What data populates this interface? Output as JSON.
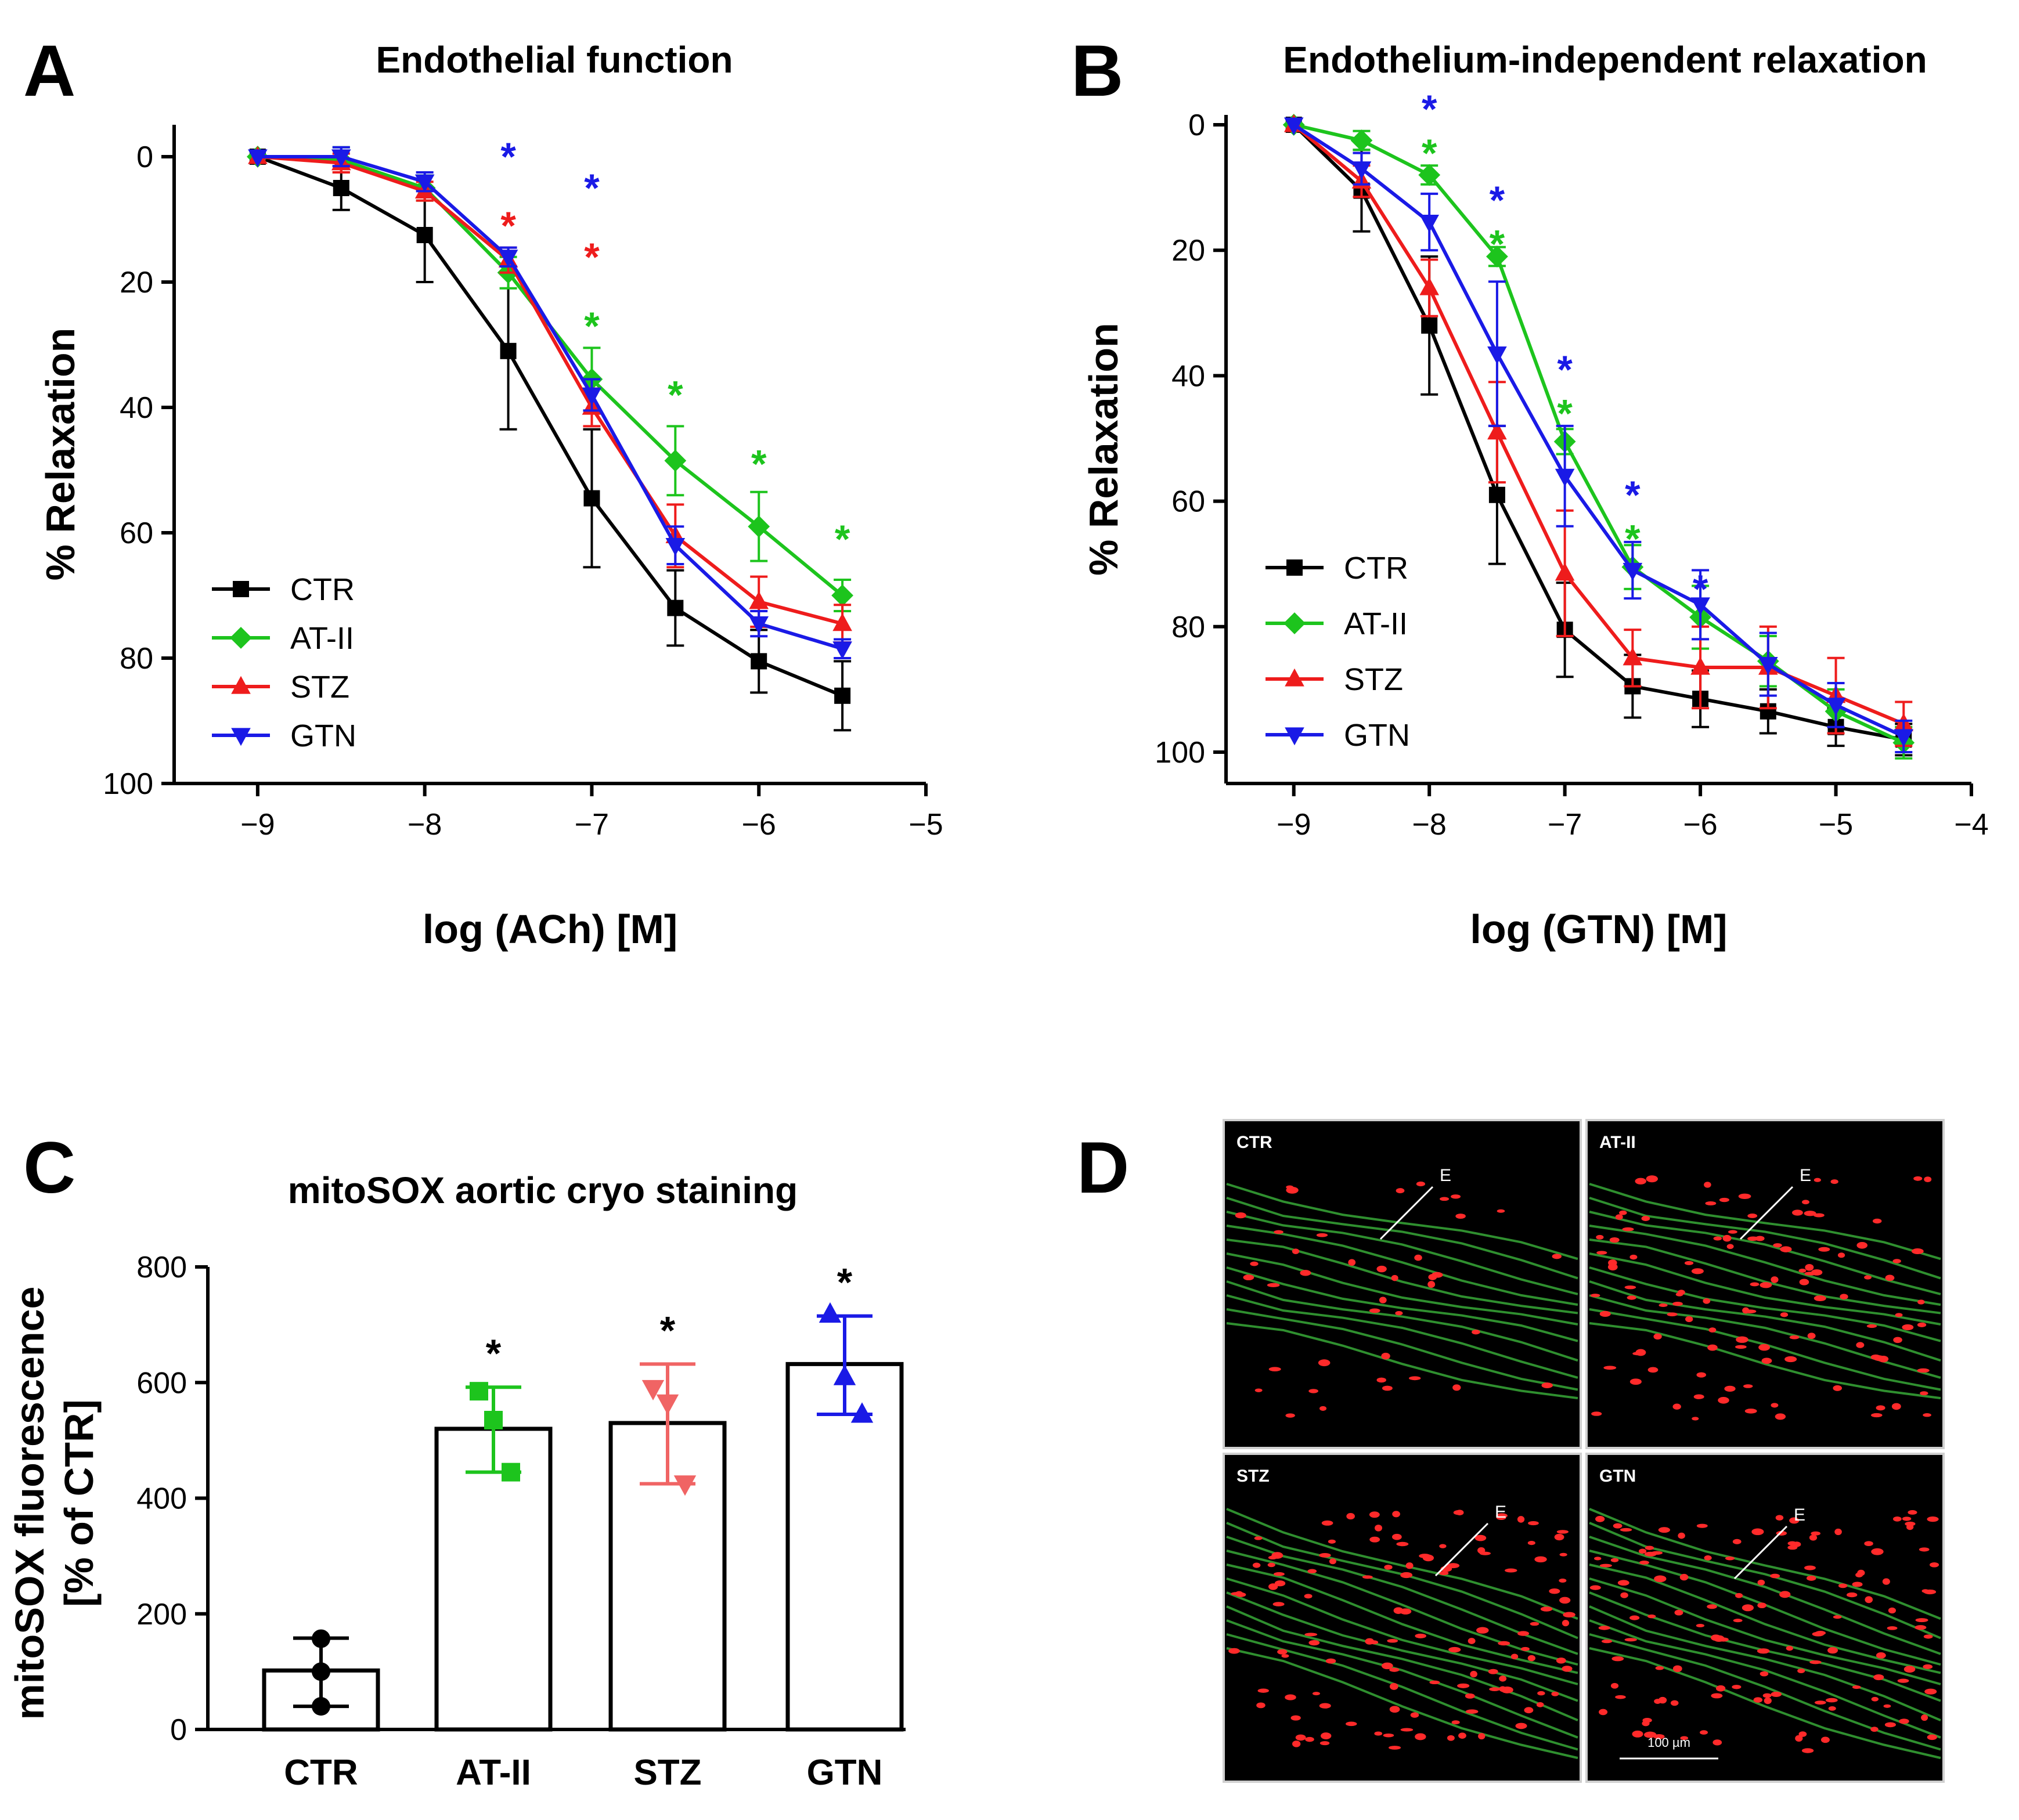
{
  "colors": {
    "CTR": "#000000",
    "AT-II": "#1dc41d",
    "STZ": "#ee1c1c",
    "GTN": "#1a1ae6",
    "STZ_light": "#f06464",
    "bg_micro": "#000000",
    "fiber": "#2f8f2f",
    "spot": "#ff2a2a"
  },
  "chart_data": [
    {
      "panel": "A",
      "type": "line",
      "title": "Endothelial function",
      "xlabel": "log (ACh) [M]",
      "ylabel": "% Relaxation",
      "xlim": [
        -9.5,
        -5
      ],
      "ylim": [
        0,
        100
      ],
      "y_inverted": true,
      "xticks": [
        -9,
        -8,
        -7,
        -6,
        -5
      ],
      "xtick_labels": [
        "−9",
        "−8",
        "−7",
        "−6",
        "−5"
      ],
      "yticks": [
        0,
        20,
        40,
        60,
        80,
        100
      ],
      "ytick_labels": [
        "0",
        "20",
        "40",
        "60",
        "80",
        "100"
      ],
      "x": [
        -9,
        -8.5,
        -8,
        -7.5,
        -7,
        -6.5,
        -6,
        -5.5
      ],
      "legend_position": "bottom-left",
      "series": [
        {
          "name": "CTR",
          "marker": "square",
          "values": [
            0,
            5,
            12.5,
            31,
            54.5,
            72,
            80.5,
            86
          ],
          "err": [
            0,
            3.5,
            7.5,
            12.5,
            11,
            6,
            5,
            5.5
          ]
        },
        {
          "name": "AT-II",
          "marker": "diamond",
          "values": [
            0,
            0.5,
            5,
            18.5,
            35.5,
            48.5,
            59,
            70
          ],
          "err": [
            0,
            2,
            2,
            2.5,
            5,
            5.5,
            5.5,
            2.5
          ]
        },
        {
          "name": "STZ",
          "marker": "triangle-up",
          "values": [
            0,
            1,
            5.5,
            16.5,
            40,
            60.5,
            71,
            74.5
          ],
          "err": [
            0,
            1.5,
            1.5,
            2,
            3,
            5,
            4,
            3
          ]
        },
        {
          "name": "GTN",
          "marker": "triangle-down",
          "values": [
            0,
            0,
            4,
            16,
            38,
            62,
            74.5,
            78.5
          ],
          "err": [
            0,
            1.5,
            1.5,
            1.5,
            2.5,
            3,
            2,
            1.5
          ]
        }
      ],
      "annotations": [
        {
          "x": -7.5,
          "y": -1,
          "text": "*",
          "series": "GTN"
        },
        {
          "x": -7.5,
          "y": 10,
          "text": "*",
          "series": "STZ"
        },
        {
          "x": -7,
          "y": 4,
          "text": "*",
          "series": "GTN"
        },
        {
          "x": -7,
          "y": 15,
          "text": "*",
          "series": "STZ"
        },
        {
          "x": -7,
          "y": 26,
          "text": "*",
          "series": "AT-II"
        },
        {
          "x": -6.5,
          "y": 37,
          "text": "*",
          "series": "AT-II"
        },
        {
          "x": -6,
          "y": 48,
          "text": "*",
          "series": "AT-II"
        },
        {
          "x": -5.5,
          "y": 60,
          "text": "*",
          "series": "AT-II"
        }
      ]
    },
    {
      "panel": "B",
      "type": "line",
      "title": "Endothelium-independent relaxation",
      "xlabel": "log (GTN) [M]",
      "ylabel": "% Relaxation",
      "xlim": [
        -9.5,
        -4
      ],
      "ylim": [
        0,
        105
      ],
      "y_inverted": true,
      "xticks": [
        -9,
        -8,
        -7,
        -6,
        -5,
        -4
      ],
      "xtick_labels": [
        "−9",
        "−8",
        "−7",
        "−6",
        "−5",
        "−4"
      ],
      "yticks": [
        0,
        20,
        40,
        60,
        80,
        100
      ],
      "ytick_labels": [
        "0",
        "20",
        "40",
        "60",
        "80",
        "100"
      ],
      "x": [
        -9,
        -8.5,
        -8,
        -7.5,
        -7,
        -6.5,
        -6,
        -5.5,
        -5,
        -4.5
      ],
      "legend_position": "bottom-left",
      "series": [
        {
          "name": "CTR",
          "marker": "square",
          "values": [
            0,
            10.5,
            32,
            59,
            80.5,
            89.5,
            91.5,
            93.5,
            96,
            98
          ],
          "err": [
            0,
            6.5,
            11,
            11,
            7.5,
            5,
            4.5,
            3.5,
            3,
            2.5
          ]
        },
        {
          "name": "AT-II",
          "marker": "diamond",
          "values": [
            0,
            2.5,
            8,
            21,
            50.5,
            70.5,
            78.5,
            85.5,
            93.5,
            98.5
          ],
          "err": [
            0,
            1.5,
            1.5,
            1.5,
            2,
            3.5,
            5,
            4,
            3.5,
            2.5
          ]
        },
        {
          "name": "STZ",
          "marker": "triangle-up",
          "values": [
            0,
            9,
            26,
            49,
            71.5,
            85,
            86.5,
            86.5,
            91,
            95.5
          ],
          "err": [
            0,
            2.5,
            4.5,
            8,
            10,
            4.5,
            6.5,
            6.5,
            6,
            3.5
          ]
        },
        {
          "name": "GTN",
          "marker": "triangle-down",
          "values": [
            0,
            7,
            15.5,
            36.5,
            56,
            71,
            76.5,
            86,
            92.5,
            97.5
          ],
          "err": [
            0,
            2.5,
            4.5,
            11.5,
            8,
            4.5,
            5.5,
            5,
            3.5,
            2.5
          ]
        }
      ],
      "annotations": [
        {
          "x": -8,
          "y": -3.5,
          "text": "*",
          "series": "GTN"
        },
        {
          "x": -8,
          "y": 3.5,
          "text": "*",
          "series": "AT-II"
        },
        {
          "x": -7.5,
          "y": 11,
          "text": "*",
          "series": "GTN"
        },
        {
          "x": -7.5,
          "y": 18,
          "text": "*",
          "series": "AT-II"
        },
        {
          "x": -7,
          "y": 38,
          "text": "*",
          "series": "GTN"
        },
        {
          "x": -7,
          "y": 45,
          "text": "*",
          "series": "AT-II"
        },
        {
          "x": -6.5,
          "y": 58,
          "text": "*",
          "series": "GTN"
        },
        {
          "x": -6.5,
          "y": 65,
          "text": "*",
          "series": "AT-II"
        },
        {
          "x": -6,
          "y": 73,
          "text": "*",
          "series": "GTN"
        }
      ]
    },
    {
      "panel": "C",
      "type": "bar",
      "title": "mitoSOX aortic cryo staining",
      "ylabel": "mitoSOX fluorescence\n[% of CTR]",
      "ylabel_lines": [
        "mitoSOX fluorescence",
        "[% of CTR]"
      ],
      "ylim": [
        0,
        800
      ],
      "yticks": [
        0,
        200,
        400,
        600,
        800
      ],
      "ytick_labels": [
        "0",
        "200",
        "400",
        "600",
        "800"
      ],
      "categories": [
        "CTR",
        "AT-II",
        "STZ",
        "GTN"
      ],
      "values": [
        102,
        520,
        530,
        632
      ],
      "err_low": [
        40,
        445,
        425,
        545
      ],
      "err_high": [
        158,
        592,
        632,
        715
      ],
      "points": [
        [
          157,
          40,
          100
        ],
        [
          585,
          445,
          535
        ],
        [
          590,
          425,
          565
        ],
        [
          718,
          545,
          610
        ]
      ],
      "markers": [
        "circle",
        "square",
        "triangle-down",
        "triangle-up"
      ],
      "significance": [
        "",
        "*",
        "*",
        "*"
      ]
    }
  ],
  "panel_d": {
    "letter": "D",
    "labels": [
      "CTR",
      "AT-II",
      "STZ",
      "GTN"
    ],
    "marker_label": "E",
    "scale_bar": "100 µm"
  }
}
